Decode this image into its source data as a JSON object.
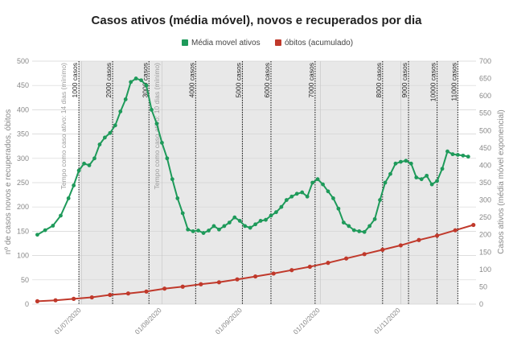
{
  "chart_data": {
    "type": "line",
    "title": "Casos ativos (média móvel), novos e recuperados por dia",
    "legend": [
      "Média movel ativos",
      "óbitos (acumulado)"
    ],
    "legend_position": "top-center",
    "ylabel_left": "nº de casos novos e recuperados, óbitos",
    "ylabel_right": "Casos ativos (média móvel exponencial)",
    "ylim_left": [
      0,
      500
    ],
    "ylim_right": [
      0,
      700
    ],
    "yticks_left": [
      "0",
      "50",
      "100",
      "150",
      "200",
      "250",
      "300",
      "350",
      "400",
      "450",
      "500"
    ],
    "yticks_right": [
      "0",
      "50",
      "100",
      "150",
      "200",
      "250",
      "300",
      "350",
      "400",
      "450",
      "500",
      "550",
      "600",
      "650",
      "700"
    ],
    "xlim": [
      "2020-06-12",
      "2020-11-30"
    ],
    "xticks": [
      "01/07/2020",
      "01/08/2020",
      "01/09/2020",
      "01/10/2020",
      "01/11/2020"
    ],
    "grid": true,
    "colors": {
      "active": "#1e9a5a",
      "deaths": "#c0392b",
      "shade": "#e8e8e8",
      "marker_line": "#222222"
    },
    "markers": [
      {
        "x": "2020-06-30",
        "label": "1000 casos"
      },
      {
        "x": "2020-07-13",
        "label": "2000 casos"
      },
      {
        "x": "2020-07-27",
        "label": "3000 casos"
      },
      {
        "x": "2020-08-14",
        "label": "4000 casos"
      },
      {
        "x": "2020-09-01",
        "label": "5000 casos"
      },
      {
        "x": "2020-09-12",
        "label": "6000 casos"
      },
      {
        "x": "2020-09-29",
        "label": "7000 casos"
      },
      {
        "x": "2020-10-25",
        "label": "8000 casos"
      },
      {
        "x": "2020-11-04",
        "label": "9000 casos"
      },
      {
        "x": "2020-11-15",
        "label": "10000 casos"
      },
      {
        "x": "2020-11-23",
        "label": "11000 casos"
      }
    ],
    "annotations": [
      {
        "x": "2020-06-25",
        "label": "Tempo como caso ativo: 14 dias (mínimo)"
      },
      {
        "x": "2020-07-31",
        "label": "Tempo como caso ativo: 10 dias (mínimo)"
      }
    ],
    "series": [
      {
        "name": "Média movel ativos",
        "axis": "right",
        "x": [
          "2020-06-14",
          "2020-06-17",
          "2020-06-20",
          "2020-06-23",
          "2020-06-26",
          "2020-06-28",
          "2020-06-30",
          "2020-07-02",
          "2020-07-04",
          "2020-07-06",
          "2020-07-08",
          "2020-07-10",
          "2020-07-12",
          "2020-07-14",
          "2020-07-16",
          "2020-07-18",
          "2020-07-20",
          "2020-07-22",
          "2020-07-24",
          "2020-07-26",
          "2020-07-28",
          "2020-07-30",
          "2020-08-01",
          "2020-08-03",
          "2020-08-05",
          "2020-08-07",
          "2020-08-09",
          "2020-08-11",
          "2020-08-13",
          "2020-08-15",
          "2020-08-17",
          "2020-08-19",
          "2020-08-21",
          "2020-08-23",
          "2020-08-25",
          "2020-08-27",
          "2020-08-29",
          "2020-08-31",
          "2020-09-02",
          "2020-09-04",
          "2020-09-06",
          "2020-09-08",
          "2020-09-10",
          "2020-09-12",
          "2020-09-14",
          "2020-09-16",
          "2020-09-18",
          "2020-09-20",
          "2020-09-22",
          "2020-09-24",
          "2020-09-26",
          "2020-09-28",
          "2020-09-30",
          "2020-10-02",
          "2020-10-04",
          "2020-10-06",
          "2020-10-08",
          "2020-10-10",
          "2020-10-12",
          "2020-10-14",
          "2020-10-16",
          "2020-10-18",
          "2020-10-20",
          "2020-10-22",
          "2020-10-24",
          "2020-10-26",
          "2020-10-28",
          "2020-10-30",
          "2020-11-01",
          "2020-11-03",
          "2020-11-05",
          "2020-11-07",
          "2020-11-09",
          "2020-11-11",
          "2020-11-13",
          "2020-11-15",
          "2020-11-17",
          "2020-11-19",
          "2020-11-21",
          "2020-11-23",
          "2020-11-25",
          "2020-11-27"
        ],
        "values": [
          200,
          213,
          226,
          255,
          305,
          342,
          385,
          405,
          400,
          420,
          460,
          480,
          493,
          515,
          555,
          590,
          640,
          650,
          645,
          630,
          560,
          520,
          465,
          420,
          360,
          305,
          262,
          215,
          210,
          212,
          205,
          212,
          225,
          215,
          225,
          235,
          250,
          240,
          225,
          220,
          230,
          240,
          243,
          255,
          265,
          280,
          300,
          310,
          318,
          322,
          310,
          350,
          360,
          345,
          325,
          305,
          275,
          235,
          225,
          213,
          210,
          208,
          225,
          245,
          300,
          350,
          375,
          405,
          410,
          413,
          405,
          365,
          360,
          370,
          345,
          355,
          390,
          440,
          432,
          430,
          428,
          425
        ]
      },
      {
        "name": "óbitos (acumulado)",
        "axis": "left",
        "x": [
          "2020-06-14",
          "2020-06-21",
          "2020-06-28",
          "2020-07-05",
          "2020-07-12",
          "2020-07-19",
          "2020-07-26",
          "2020-08-02",
          "2020-08-09",
          "2020-08-16",
          "2020-08-23",
          "2020-08-30",
          "2020-09-06",
          "2020-09-13",
          "2020-09-20",
          "2020-09-27",
          "2020-10-04",
          "2020-10-11",
          "2020-10-18",
          "2020-10-25",
          "2020-11-01",
          "2020-11-08",
          "2020-11-15",
          "2020-11-22",
          "2020-11-29"
        ],
        "values": [
          6,
          8,
          11,
          14,
          19,
          22,
          26,
          32,
          36,
          41,
          45,
          51,
          57,
          63,
          70,
          77,
          85,
          94,
          103,
          112,
          121,
          132,
          141,
          152,
          163
        ]
      }
    ]
  }
}
